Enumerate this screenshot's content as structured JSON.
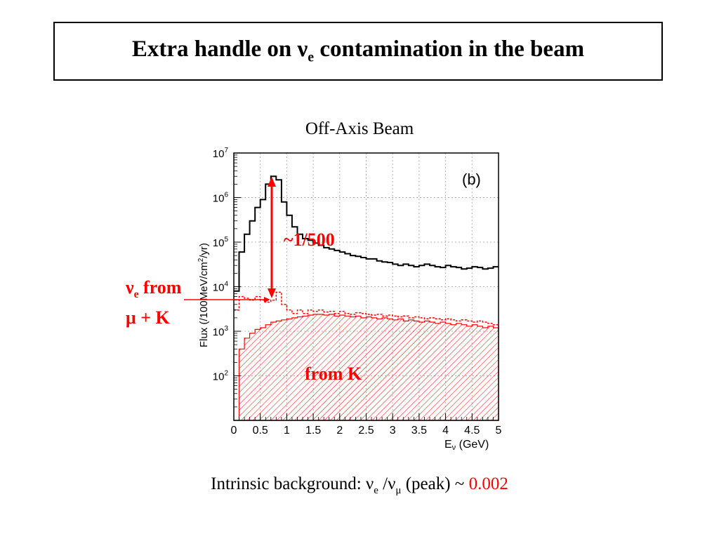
{
  "slide": {
    "title_pre": "Extra handle on ν",
    "title_sub": "e",
    "title_post": " contamination in the beam",
    "subtitle": "Off-Axis Beam",
    "background_pre": "Intrinsic background: ν",
    "background_sub1": "e",
    "background_mid": " /ν",
    "background_sub2": "μ",
    "background_post": " (peak) ~ ",
    "background_value": "0.002"
  },
  "annotations": {
    "ratio": "~1/500",
    "ve_pre": "ν",
    "ve_sub": "e",
    "ve_post": " from",
    "ve_line2": "μ + K",
    "from_k": "from K"
  },
  "colors": {
    "numu": "#000000",
    "nue": "#ff0000",
    "accent": "#ff0000"
  },
  "chart_data": {
    "type": "line",
    "panel_label": "(b)",
    "xlabel_pre": "E",
    "xlabel_sub": "ν",
    "xlabel_post": " (GeV)",
    "ylabel_pre": "Flux (/100MeV/cm",
    "ylabel_sup": "2",
    "ylabel_post": "/yr)",
    "xlim": [
      0,
      5
    ],
    "ylim": [
      10,
      10000000
    ],
    "yscale": "log",
    "grid": true,
    "x_ticks": [
      "0",
      "0.5",
      "1",
      "1.5",
      "2",
      "2.5",
      "3",
      "3.5",
      "4",
      "4.5",
      "5"
    ],
    "y_ticks": [
      {
        "base": "10",
        "exp": "2",
        "value": 100
      },
      {
        "base": "10",
        "exp": "3",
        "value": 1000
      },
      {
        "base": "10",
        "exp": "4",
        "value": 10000
      },
      {
        "base": "10",
        "exp": "5",
        "value": 100000
      },
      {
        "base": "10",
        "exp": "6",
        "value": 1000000
      },
      {
        "base": "10",
        "exp": "7",
        "value": 10000000
      }
    ],
    "bin_width": 0.1,
    "series": [
      {
        "style": "solid-black-step",
        "values": [
          8000,
          60000,
          150000,
          300000,
          600000,
          900000,
          2000000,
          3000000,
          2500000,
          800000,
          400000,
          220000,
          150000,
          120000,
          110000,
          95000,
          85000,
          75000,
          70000,
          65000,
          60000,
          55000,
          50000,
          48000,
          45000,
          42000,
          42000,
          38000,
          36000,
          35000,
          32000,
          30000,
          32000,
          30000,
          28000,
          30000,
          32000,
          30000,
          28000,
          27000,
          30000,
          28000,
          27000,
          25000,
          26000,
          28000,
          27000,
          25000,
          26000,
          28000
        ]
      },
      {
        "style": "dashed-red-step",
        "values": [
          3000,
          6000,
          5500,
          5000,
          6000,
          5000,
          4500,
          5000,
          7500,
          4000,
          3000,
          2500,
          3000,
          2500,
          3000,
          2800,
          3000,
          2700,
          2800,
          2500,
          2800,
          2500,
          2400,
          2600,
          2500,
          2400,
          2300,
          2400,
          2200,
          2300,
          2200,
          2100,
          2200,
          2000,
          2100,
          2000,
          1900,
          2000,
          1900,
          1800,
          1900,
          1800,
          1700,
          1800,
          1700,
          1600,
          1700,
          1600,
          1500,
          1400
        ]
      },
      {
        "style": "hatched-red-step",
        "values": [
          10,
          400,
          700,
          900,
          1100,
          1200,
          1400,
          1600,
          1700,
          1800,
          1900,
          2000,
          2100,
          2200,
          2300,
          2400,
          2400,
          2300,
          2400,
          2200,
          2300,
          2200,
          2100,
          2200,
          2000,
          2100,
          2000,
          1900,
          2000,
          1900,
          1800,
          1900,
          1700,
          1800,
          1700,
          1600,
          1700,
          1600,
          1500,
          1600,
          1500,
          1400,
          1500,
          1400,
          1300,
          1400,
          1300,
          1200,
          1300,
          1200
        ]
      }
    ]
  }
}
